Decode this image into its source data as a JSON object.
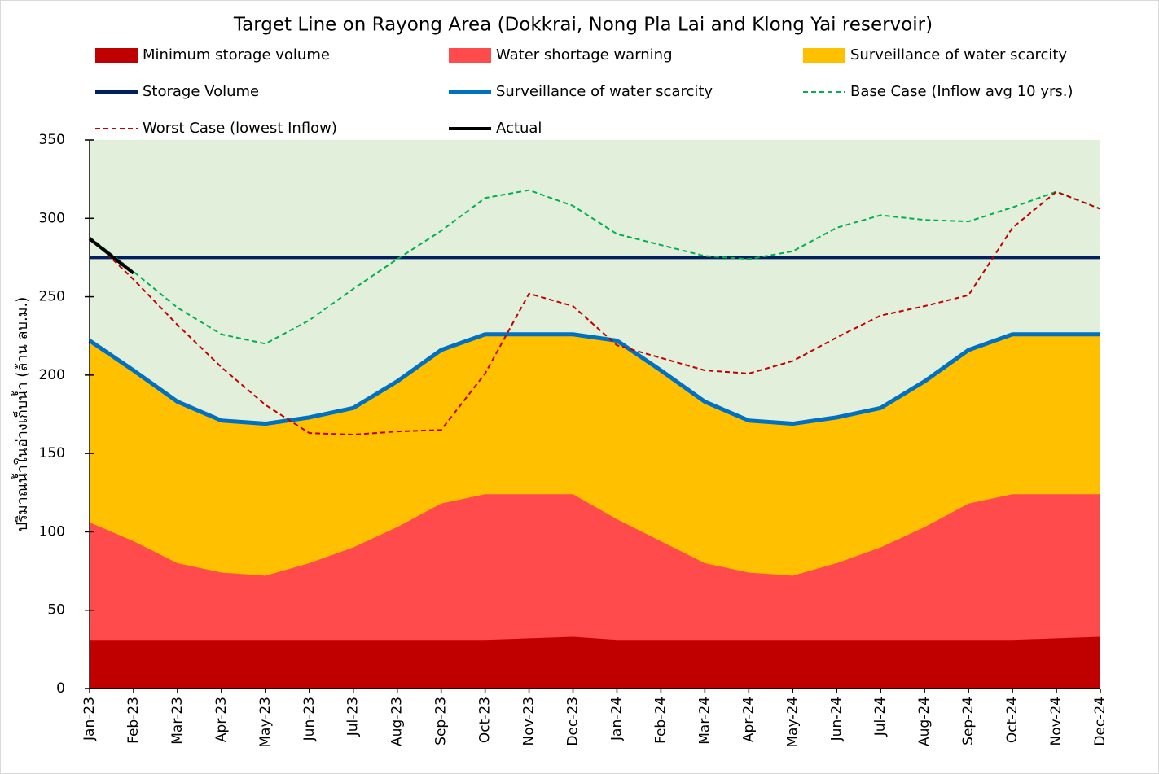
{
  "chart_data": {
    "type": "area-line",
    "title": "Target Line on Rayong Area (Dokkrai, Nong Pla Lai and Klong Yai reservoir)",
    "y_label": "ปริมาณน้ำในอ่างเก็บน้ำ (ล้าน ลบ.ม.)",
    "categories": [
      "Jan-23",
      "Feb-23",
      "Mar-23",
      "Apr-23",
      "May-23",
      "Jun-23",
      "Jul-23",
      "Aug-23",
      "Sep-23",
      "Oct-23",
      "Nov-23",
      "Dec-23",
      "Jan-24",
      "Feb-24",
      "Mar-24",
      "Apr-24",
      "May-24",
      "Jun-24",
      "Jul-24",
      "Aug-24",
      "Sep-24",
      "Oct-24",
      "Nov-24",
      "Dec-24"
    ],
    "ylim": [
      0,
      350
    ],
    "yticks": [
      0,
      50,
      100,
      150,
      200,
      250,
      300,
      350
    ],
    "plot_background": "#e2efda",
    "series": [
      {
        "name": "Minimum storage volume",
        "kind": "area",
        "color": "#c00000",
        "values": [
          31,
          31,
          31,
          31,
          31,
          31,
          31,
          31,
          31,
          31,
          32,
          33,
          31,
          31,
          31,
          31,
          31,
          31,
          31,
          31,
          31,
          31,
          32,
          33
        ]
      },
      {
        "name": "Water shortage warning",
        "kind": "area",
        "color": "#ff4b4b",
        "values": [
          106,
          94,
          80,
          74,
          72,
          80,
          90,
          103,
          118,
          124,
          124,
          124,
          108,
          94,
          80,
          74,
          72,
          80,
          90,
          103,
          118,
          124,
          124,
          124
        ]
      },
      {
        "name": "Surveillance of water scarcity",
        "kind": "area",
        "color": "#ffc000",
        "values": [
          222,
          203,
          183,
          171,
          169,
          173,
          179,
          196,
          216,
          226,
          226,
          226,
          222,
          203,
          183,
          171,
          169,
          173,
          179,
          196,
          216,
          226,
          226,
          226
        ]
      },
      {
        "name": "Storage Volume",
        "kind": "line",
        "color": "#002060",
        "width": 4,
        "values": [
          275,
          275,
          275,
          275,
          275,
          275,
          275,
          275,
          275,
          275,
          275,
          275,
          275,
          275,
          275,
          275,
          275,
          275,
          275,
          275,
          275,
          275,
          275,
          275
        ]
      },
      {
        "name": "Surveillance of water scarcity",
        "kind": "line",
        "color": "#0070c0",
        "width": 5,
        "values": [
          222,
          203,
          183,
          171,
          169,
          173,
          179,
          196,
          216,
          226,
          226,
          226,
          222,
          203,
          183,
          171,
          169,
          173,
          179,
          196,
          216,
          226,
          226,
          226
        ]
      },
      {
        "name": "Base Case (Inflow avg 10 yrs.)",
        "kind": "line",
        "color": "#00b050",
        "width": 2,
        "dashed": true,
        "values": [
          288,
          266,
          243,
          226,
          220,
          235,
          255,
          274,
          292,
          313,
          318,
          308,
          290,
          283,
          276,
          274,
          279,
          294,
          302,
          299,
          298,
          307,
          317,
          306
        ]
      },
      {
        "name": "Worst Case (lowest Inflow)",
        "kind": "line",
        "color": "#c00000",
        "width": 2,
        "dashed": true,
        "values": [
          288,
          261,
          232,
          205,
          181,
          163,
          162,
          164,
          165,
          201,
          252,
          244,
          219,
          211,
          203,
          201,
          209,
          224,
          238,
          244,
          251,
          294,
          317,
          306
        ]
      },
      {
        "name": "Actual",
        "kind": "line",
        "color": "#000000",
        "width": 4,
        "values": [
          287,
          265,
          null,
          null,
          null,
          null,
          null,
          null,
          null,
          null,
          null,
          null,
          null,
          null,
          null,
          null,
          null,
          null,
          null,
          null,
          null,
          null,
          null,
          null
        ]
      }
    ]
  }
}
